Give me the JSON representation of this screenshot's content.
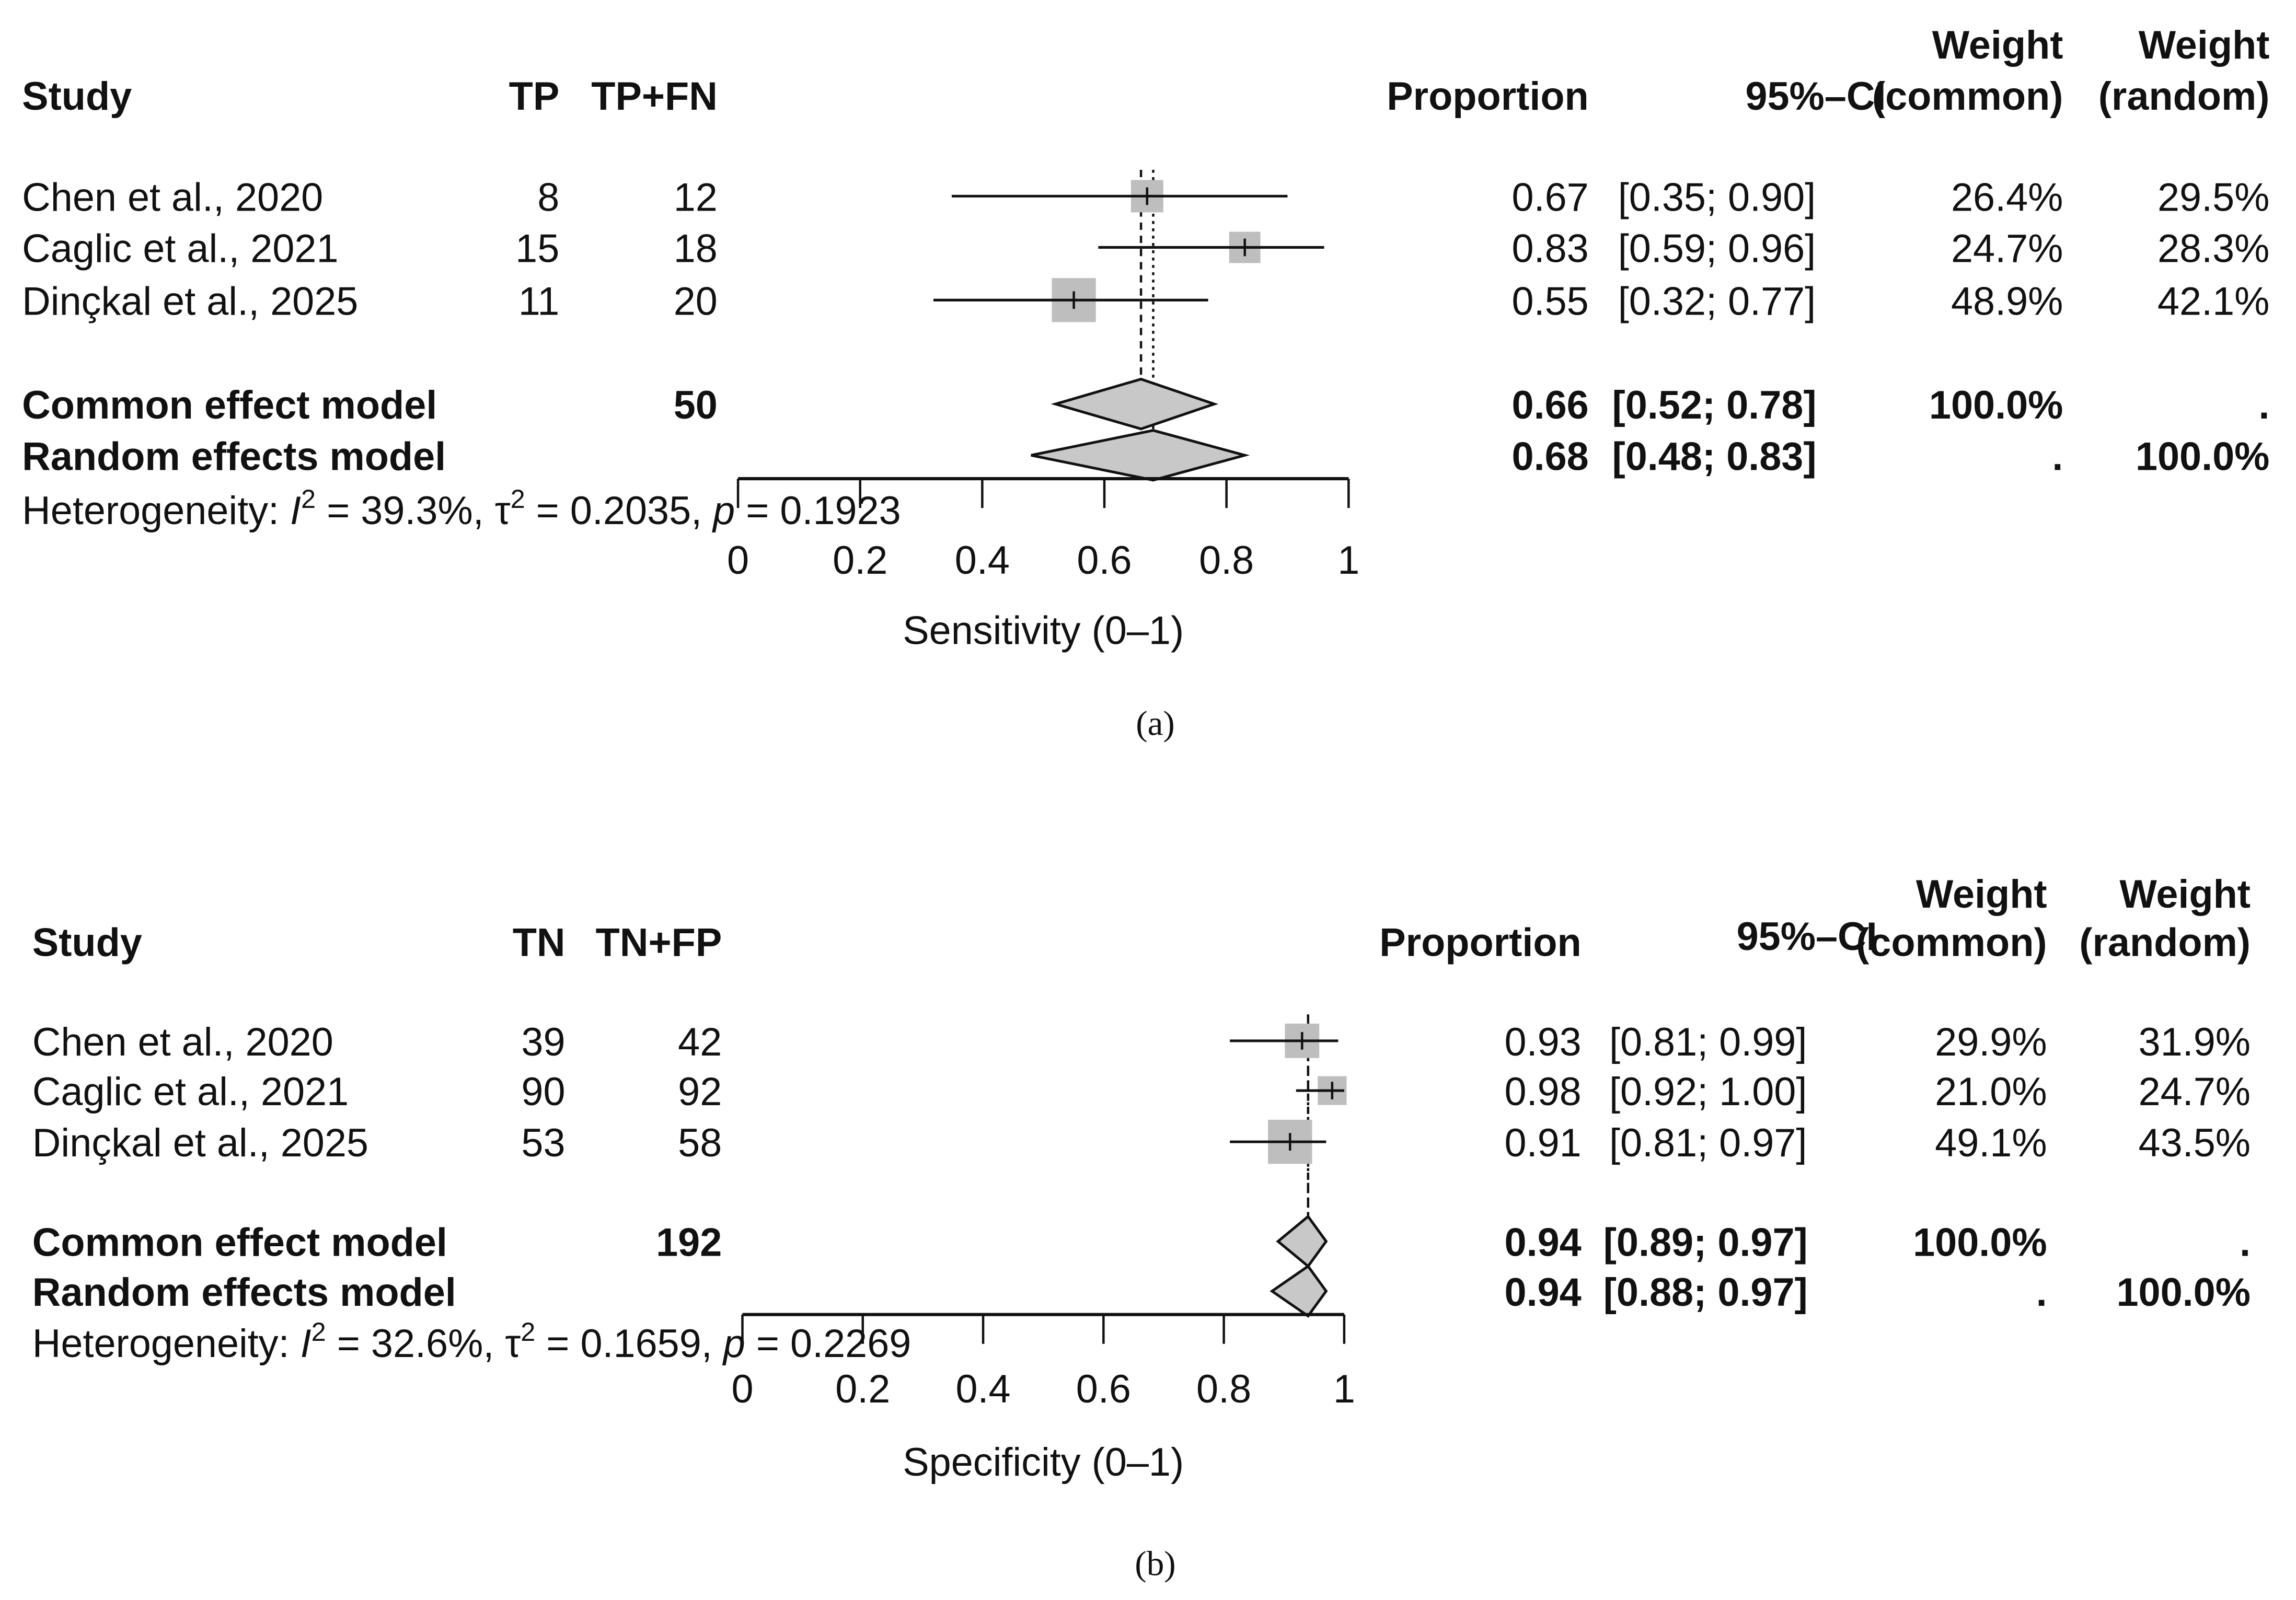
{
  "chart_data": [
    {
      "type": "forest",
      "caption": "(a)",
      "xlabel": "Sensitivity (0–1)",
      "xlim": [
        0,
        1
      ],
      "ticks": [
        0,
        0.2,
        0.4,
        0.6,
        0.8,
        1
      ],
      "tick_labels": [
        "0",
        "0.2",
        "0.4",
        "0.6",
        "0.8",
        "1"
      ],
      "columns": {
        "study": "Study",
        "events": "TP",
        "total": "TP+FN",
        "proportion": "Proportion",
        "ci": "95%–CI",
        "weight_common_1": "Weight",
        "weight_common_2": "(common)",
        "weight_random_1": "Weight",
        "weight_random_2": "(random)"
      },
      "studies": [
        {
          "name": "Chen et al., 2020",
          "events": "8",
          "total": "12",
          "proportion": 0.67,
          "ci_lower": 0.35,
          "ci_upper": 0.9,
          "proportion_label": "0.67",
          "ci_label": "[0.35; 0.90]",
          "weight_common": "26.4%",
          "weight_random": "29.5%"
        },
        {
          "name": "Caglic et al., 2021",
          "events": "15",
          "total": "18",
          "proportion": 0.83,
          "ci_lower": 0.59,
          "ci_upper": 0.96,
          "proportion_label": "0.83",
          "ci_label": "[0.59; 0.96]",
          "weight_common": "24.7%",
          "weight_random": "28.3%"
        },
        {
          "name": "Dinçkal et al., 2025",
          "events": "11",
          "total": "20",
          "proportion": 0.55,
          "ci_lower": 0.32,
          "ci_upper": 0.77,
          "proportion_label": "0.55",
          "ci_label": "[0.32; 0.77]",
          "weight_common": "48.9%",
          "weight_random": "42.1%"
        }
      ],
      "common": {
        "name": "Common effect model",
        "total": "50",
        "proportion": 0.66,
        "ci_lower": 0.52,
        "ci_upper": 0.78,
        "proportion_label": "0.66",
        "ci_label": "[0.52; 0.78]",
        "weight_common": "100.0%",
        "weight_random": "."
      },
      "random": {
        "name": "Random effects model",
        "total": "",
        "proportion": 0.68,
        "ci_lower": 0.48,
        "ci_upper": 0.83,
        "proportion_label": "0.68",
        "ci_label": "[0.48; 0.83]",
        "weight_common": ".",
        "weight_random": "100.0%"
      },
      "heterogeneity": {
        "label": "Heterogeneity: ",
        "i_symbol": "I",
        "i2": " = 39.3%, ",
        "tau_symbol": "τ",
        "tau2": " = 0.2035, ",
        "p_symbol": "p",
        "p": " = 0.1923",
        "sup": "2"
      },
      "colors": {
        "square": "#bebebe",
        "diamond": "#c8c8c8",
        "line": "#111111"
      }
    },
    {
      "type": "forest",
      "caption": "(b)",
      "xlabel": "Specificity (0–1)",
      "xlim": [
        0,
        1
      ],
      "ticks": [
        0,
        0.2,
        0.4,
        0.6,
        0.8,
        1
      ],
      "tick_labels": [
        "0",
        "0.2",
        "0.4",
        "0.6",
        "0.8",
        "1"
      ],
      "columns": {
        "study": "Study",
        "events": "TN",
        "total": "TN+FP",
        "proportion": "Proportion",
        "ci": "95%–CI",
        "weight_common_1": "Weight",
        "weight_common_2": "(common)",
        "weight_random_1": "Weight",
        "weight_random_2": "(random)"
      },
      "studies": [
        {
          "name": "Chen et al., 2020",
          "events": "39",
          "total": "42",
          "proportion": 0.93,
          "ci_lower": 0.81,
          "ci_upper": 0.99,
          "proportion_label": "0.93",
          "ci_label": "[0.81; 0.99]",
          "weight_common": "29.9%",
          "weight_random": "31.9%"
        },
        {
          "name": "Caglic et al., 2021",
          "events": "90",
          "total": "92",
          "proportion": 0.98,
          "ci_lower": 0.92,
          "ci_upper": 1.0,
          "proportion_label": "0.98",
          "ci_label": "[0.92; 1.00]",
          "weight_common": "21.0%",
          "weight_random": "24.7%"
        },
        {
          "name": "Dinçkal et al., 2025",
          "events": "53",
          "total": "58",
          "proportion": 0.91,
          "ci_lower": 0.81,
          "ci_upper": 0.97,
          "proportion_label": "0.91",
          "ci_label": "[0.81; 0.97]",
          "weight_common": "49.1%",
          "weight_random": "43.5%"
        }
      ],
      "common": {
        "name": "Common effect model",
        "total": "192",
        "proportion": 0.94,
        "ci_lower": 0.89,
        "ci_upper": 0.97,
        "proportion_label": "0.94",
        "ci_label": "[0.89; 0.97]",
        "weight_common": "100.0%",
        "weight_random": "."
      },
      "random": {
        "name": "Random effects model",
        "total": "",
        "proportion": 0.94,
        "ci_lower": 0.88,
        "ci_upper": 0.97,
        "proportion_label": "0.94",
        "ci_label": "[0.88; 0.97]",
        "weight_common": ".",
        "weight_random": "100.0%"
      },
      "heterogeneity": {
        "label": "Heterogeneity: ",
        "i_symbol": "I",
        "i2": " = 32.6%, ",
        "tau_symbol": "τ",
        "tau2": " = 0.1659, ",
        "p_symbol": "p",
        "p": " = 0.2269",
        "sup": "2"
      },
      "colors": {
        "square": "#bebebe",
        "diamond": "#c8c8c8",
        "line": "#111111"
      }
    }
  ]
}
